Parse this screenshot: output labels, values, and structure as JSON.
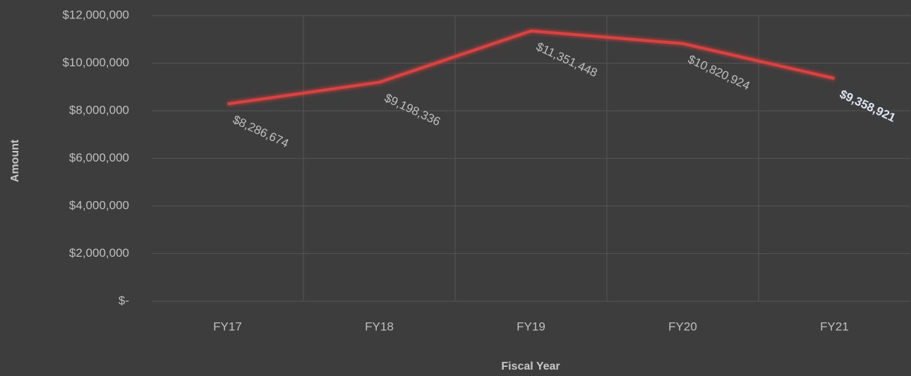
{
  "chart_data": {
    "type": "line",
    "categories": [
      "FY17",
      "FY18",
      "FY19",
      "FY20",
      "FY21"
    ],
    "series": [
      {
        "name": "Amount",
        "color": "#e0403c",
        "values": [
          8286674,
          9198336,
          11351448,
          10820924,
          9358921
        ],
        "value_labels": [
          "$8,286,674",
          "$9,198,336",
          "$11,351,448",
          "$10,820,924",
          "$9,358,921"
        ]
      }
    ],
    "ylim": [
      0,
      12000000
    ],
    "yticks": [
      {
        "value": 0,
        "label": "$-"
      },
      {
        "value": 2000000,
        "label": "$2,000,000"
      },
      {
        "value": 4000000,
        "label": "$4,000,000"
      },
      {
        "value": 6000000,
        "label": "$6,000,000"
      },
      {
        "value": 8000000,
        "label": "$8,000,000"
      },
      {
        "value": 10000000,
        "label": "$10,000,000"
      },
      {
        "value": 12000000,
        "label": "$12,000,000"
      }
    ],
    "xlabel": "Fiscal Year",
    "ylabel": "Amount",
    "grid": true
  }
}
